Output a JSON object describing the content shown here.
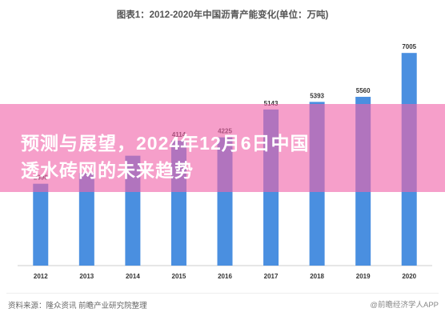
{
  "overlay": {
    "line1": "预测与展望，2024年12月6日中国",
    "line2": "透水砖网的未来趋势"
  },
  "source": "资料来源：隆众资讯 前瞻产业研究院整理",
  "credit": "@前瞻经济学人APP",
  "colors": {
    "bar": "#4a8fe0",
    "label": "#333333",
    "axis": "#cccccc",
    "overlay": "#f064aa"
  },
  "chart_data": {
    "type": "bar",
    "title": "图表1：2012-2020年中国沥青产能变化(单位：万吨)",
    "categories": [
      "2012",
      "2013",
      "2014",
      "2015",
      "2016",
      "2017",
      "2018",
      "2019",
      "2020"
    ],
    "values": [
      2696,
      3050,
      3620,
      4114,
      4225,
      5143,
      5393,
      5560,
      7005
    ],
    "data_labels": [
      "2696",
      "",
      "",
      "4114",
      "4225",
      "5143",
      "5393",
      "5560",
      "7005"
    ],
    "ylim": [
      0,
      7300
    ],
    "xlabel": "",
    "ylabel": ""
  }
}
